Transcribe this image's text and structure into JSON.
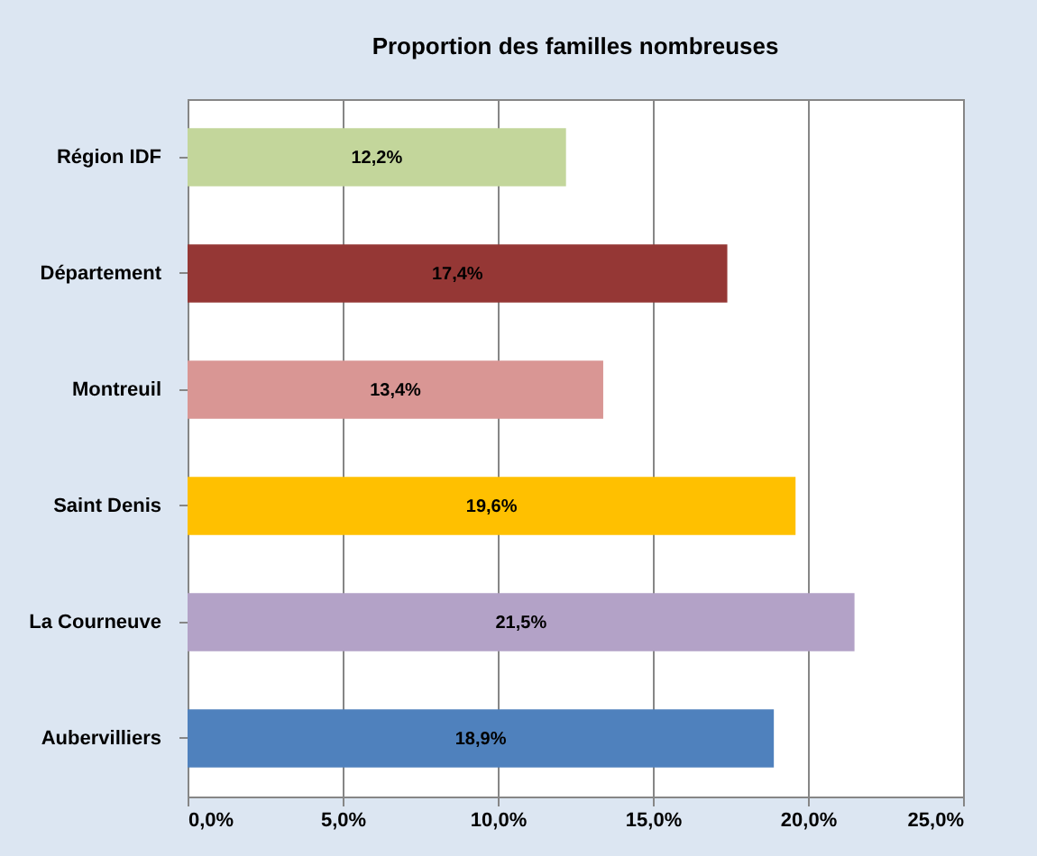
{
  "chart_data": {
    "type": "bar",
    "orientation": "horizontal",
    "title": "Proportion des familles nombreuses",
    "categories": [
      "Région IDF",
      "Département",
      "Montreuil",
      "Saint Denis",
      "La Courneuve",
      "Aubervilliers"
    ],
    "values": [
      12.2,
      17.4,
      13.4,
      19.6,
      21.5,
      18.9
    ],
    "colors": [
      "#c3d69b",
      "#953735",
      "#d99694",
      "#ffc000",
      "#b3a2c7",
      "#4f81bd"
    ],
    "value_labels": [
      "12,2%",
      "17,4%",
      "13,4%",
      "19,6%",
      "21,5%",
      "18,9%"
    ],
    "xlim": [
      0,
      25
    ],
    "xticks": [
      {
        "value": 0,
        "label": "0,0%"
      },
      {
        "value": 5,
        "label": "5,0%"
      },
      {
        "value": 10,
        "label": "10,0%"
      },
      {
        "value": 15,
        "label": "15,0%"
      },
      {
        "value": 20,
        "label": "20,0%"
      },
      {
        "value": 25,
        "label": "25,0%"
      }
    ],
    "grid": "x",
    "legend": false
  }
}
